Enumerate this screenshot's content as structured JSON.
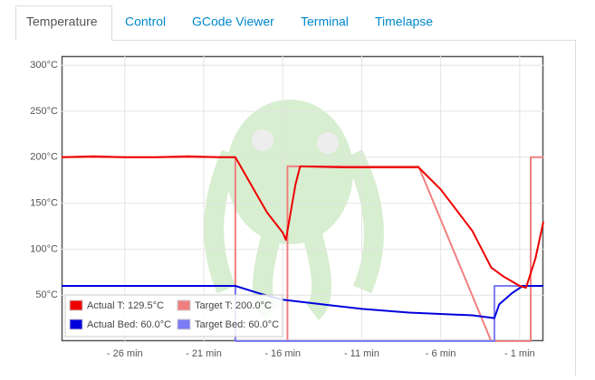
{
  "tabs": [
    "Temperature",
    "Control",
    "GCode Viewer",
    "Terminal",
    "Timelapse"
  ],
  "chart_data": {
    "type": "line",
    "xlim": [
      -30,
      0.5
    ],
    "xticks": [
      {
        "value": -26,
        "label": "- 26 min"
      },
      {
        "value": -21,
        "label": "- 21 min"
      },
      {
        "value": -16,
        "label": "- 16 min"
      },
      {
        "value": -11,
        "label": "- 11 min"
      },
      {
        "value": -6,
        "label": "- 6 min"
      },
      {
        "value": -1,
        "label": "- 1 min"
      }
    ],
    "ylim": [
      0,
      310
    ],
    "yticks": [
      {
        "value": 50,
        "label": "50°C"
      },
      {
        "value": 100,
        "label": "100°C"
      },
      {
        "value": 150,
        "label": "150°C"
      },
      {
        "value": 200,
        "label": "200°C"
      },
      {
        "value": 250,
        "label": "250°C"
      },
      {
        "value": 300,
        "label": "300°C"
      }
    ],
    "grid": true,
    "legend": "bottom-left",
    "series": [
      {
        "name": "Actual T: 129.5°C",
        "color": "#ee0000",
        "x": [
          -30,
          -28,
          -26,
          -24,
          -22,
          -20,
          -19,
          -18,
          -17,
          -16,
          -15.8,
          -15.2,
          -14.9,
          -12,
          -10,
          -7.4,
          -6,
          -4,
          -2.8,
          -2,
          -1,
          -0.6,
          0,
          0.5
        ],
        "values": [
          200,
          201,
          200,
          200,
          201,
          200,
          200,
          170,
          140,
          118,
          110,
          170,
          190,
          189,
          189,
          189,
          165,
          120,
          80,
          70,
          60,
          58,
          90,
          130
        ]
      },
      {
        "name": "Target T: 200.0°C",
        "color": "#f08080",
        "x": [
          -30,
          -19,
          -19,
          -15.7,
          -15.7,
          -7.4,
          -2.8,
          -0.3,
          -0.3,
          0.5
        ],
        "values": [
          200,
          200,
          0,
          0,
          190,
          190,
          0,
          0,
          200,
          200
        ]
      },
      {
        "name": "Actual Bed: 60.0°C",
        "color": "#0000dd",
        "x": [
          -30,
          -19,
          -17.5,
          -16,
          -13,
          -11,
          -8,
          -4,
          -2.6,
          -2.3,
          -1.5,
          -0.8,
          0.5
        ],
        "values": [
          60,
          60,
          52,
          45,
          39,
          35,
          31,
          28,
          25,
          40,
          52,
          60,
          60
        ]
      },
      {
        "name": "Target Bed: 60.0°C",
        "color": "#7b7bf5",
        "x": [
          -30,
          -19,
          -19,
          -2.6,
          -2.6,
          0.5
        ],
        "values": [
          60,
          60,
          0,
          0,
          60,
          60
        ]
      }
    ]
  }
}
